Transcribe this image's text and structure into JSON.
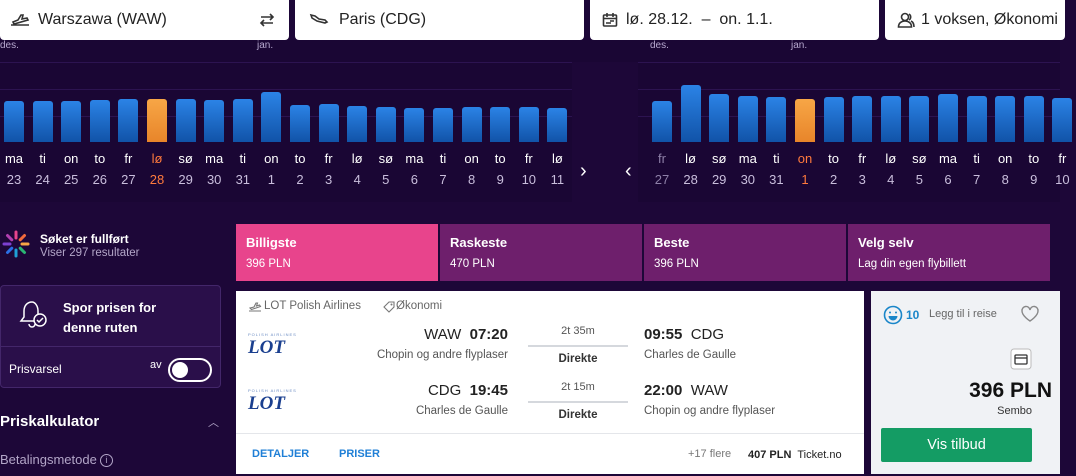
{
  "search": {
    "origin": "Warszawa (WAW)",
    "destination": "Paris (CDG)",
    "dates": "lø. 28.12.  –  on. 1.1.",
    "passengers": "1 voksen, Økonomi",
    "icons": [
      "plane-depart-icon",
      "swap-icon",
      "plane-arrive-icon",
      "calendar-icon",
      "user-icon"
    ]
  },
  "calendar": {
    "outbound": {
      "months": [
        "des.",
        "jan."
      ],
      "days": [
        {
          "name": "ma",
          "num": "23",
          "level": 0.7
        },
        {
          "name": "ti",
          "num": "24",
          "level": 0.7
        },
        {
          "name": "on",
          "num": "25",
          "level": 0.7
        },
        {
          "name": "to",
          "num": "26",
          "level": 0.72
        },
        {
          "name": "fr",
          "num": "27",
          "level": 0.74
        },
        {
          "name": "lø",
          "num": "28",
          "level": 0.74,
          "selected": true
        },
        {
          "name": "sø",
          "num": "29",
          "level": 0.74
        },
        {
          "name": "ma",
          "num": "30",
          "level": 0.72
        },
        {
          "name": "ti",
          "num": "31",
          "level": 0.74
        },
        {
          "name": "on",
          "num": "1",
          "level": 0.86
        },
        {
          "name": "to",
          "num": "2",
          "level": 0.64
        },
        {
          "name": "fr",
          "num": "3",
          "level": 0.65
        },
        {
          "name": "lø",
          "num": "4",
          "level": 0.62
        },
        {
          "name": "sø",
          "num": "5",
          "level": 0.6
        },
        {
          "name": "ma",
          "num": "6",
          "level": 0.58
        },
        {
          "name": "ti",
          "num": "7",
          "level": 0.58
        },
        {
          "name": "on",
          "num": "8",
          "level": 0.6
        },
        {
          "name": "to",
          "num": "9",
          "level": 0.6
        },
        {
          "name": "fr",
          "num": "10",
          "level": 0.6
        },
        {
          "name": "lø",
          "num": "11",
          "level": 0.58
        }
      ]
    },
    "inbound": {
      "months": [
        "des.",
        "jan."
      ],
      "days": [
        {
          "name": "fr",
          "num": "27",
          "level": 0.7,
          "dim": true
        },
        {
          "name": "lø",
          "num": "28",
          "level": 0.98
        },
        {
          "name": "sø",
          "num": "29",
          "level": 0.82
        },
        {
          "name": "ma",
          "num": "30",
          "level": 0.8
        },
        {
          "name": "ti",
          "num": "31",
          "level": 0.78
        },
        {
          "name": "on",
          "num": "1",
          "level": 0.74,
          "selected": true
        },
        {
          "name": "to",
          "num": "2",
          "level": 0.78
        },
        {
          "name": "fr",
          "num": "3",
          "level": 0.8
        },
        {
          "name": "lø",
          "num": "4",
          "level": 0.8
        },
        {
          "name": "sø",
          "num": "5",
          "level": 0.8
        },
        {
          "name": "ma",
          "num": "6",
          "level": 0.82
        },
        {
          "name": "ti",
          "num": "7",
          "level": 0.8
        },
        {
          "name": "on",
          "num": "8",
          "level": 0.8
        },
        {
          "name": "to",
          "num": "9",
          "level": 0.8
        },
        {
          "name": "fr",
          "num": "10",
          "level": 0.76
        }
      ]
    }
  },
  "status": {
    "title": "Søket er fullført",
    "subtitle": "Viser 297 resultater"
  },
  "alert": {
    "title": "Spor prisen for denne ruten",
    "label": "Prisvarsel",
    "toggle_state": "av"
  },
  "calculator": {
    "title": "Priskalkulator",
    "payment_label": "Betalingsmetode"
  },
  "tabs": [
    {
      "title": "Billigste",
      "sub": "396 PLN",
      "active": true
    },
    {
      "title": "Raskeste",
      "sub": "470 PLN"
    },
    {
      "title": "Beste",
      "sub": "396 PLN"
    },
    {
      "title": "Velg selv",
      "sub": "Lag din egen flybillett"
    }
  ],
  "result": {
    "airline": "LOT Polish Airlines",
    "cabin": "Økonomi",
    "logo_small": "POLISH AIRLINES",
    "logo_text": "LOT",
    "legs": [
      {
        "dep_code": "WAW",
        "dep_time": "07:20",
        "dep_airport": "Chopin og andre flyplaser",
        "duration": "2t 35m",
        "stops": "Direkte",
        "arr_time": "09:55",
        "arr_code": "CDG",
        "arr_airport": "Charles de Gaulle"
      },
      {
        "dep_code": "CDG",
        "dep_time": "19:45",
        "dep_airport": "Charles de Gaulle",
        "duration": "2t 15m",
        "stops": "Direkte",
        "arr_time": "22:00",
        "arr_code": "WAW",
        "arr_airport": "Chopin og andre flyplaser"
      }
    ],
    "details_link": "DETALJER",
    "prices_link": "PRISER",
    "more": "+17 flere",
    "alt_price": "407 PLN",
    "alt_provider": "Ticket.no",
    "count": "10",
    "wishlist": "Legg til i reise",
    "price": "396 PLN",
    "provider": "Sembo",
    "cta": "Vis tilbud"
  }
}
